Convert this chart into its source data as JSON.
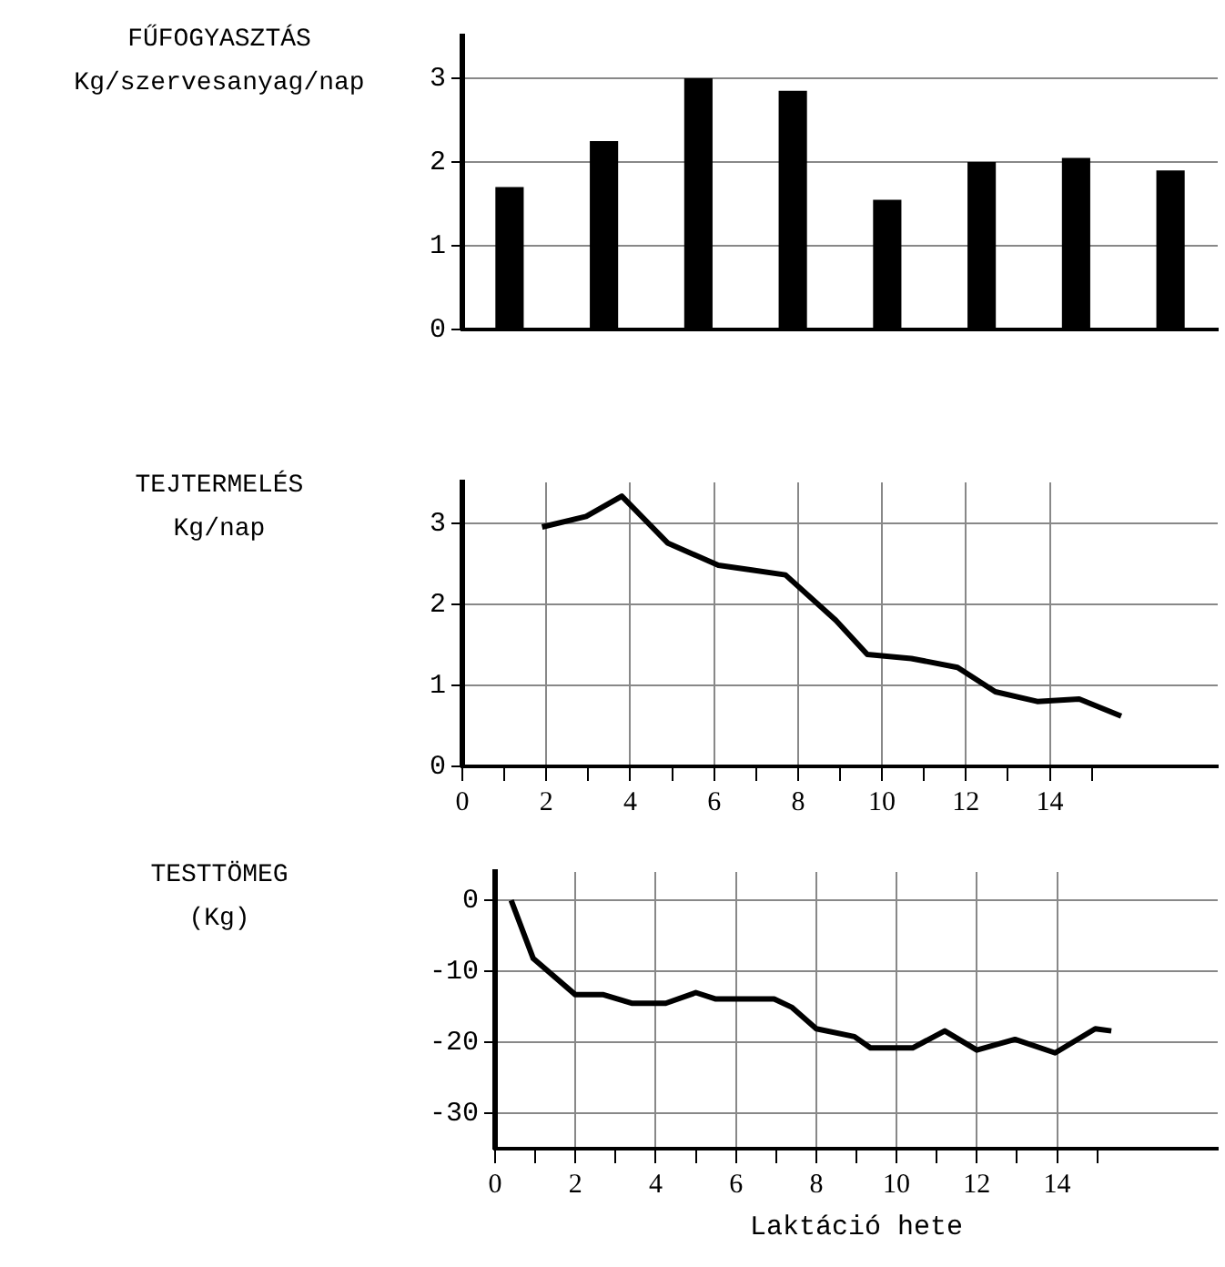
{
  "chart_data": [
    {
      "type": "bar",
      "ylabel": "FŰFOGYASZTÁS\nKg/szervesanyag/nap",
      "categories": [
        null,
        null,
        null,
        null,
        null,
        null,
        null,
        null
      ],
      "values": [
        1.7,
        2.25,
        3.0,
        2.85,
        1.55,
        2.0,
        2.05,
        1.9
      ],
      "color": "#000000",
      "ylim": [
        0,
        3.5
      ],
      "yticks": [
        0,
        1,
        2,
        3
      ],
      "grid": "y",
      "tick_labels": "y"
    },
    {
      "type": "line",
      "ylabel": "TEJTERMELÉS\nKg/nap",
      "series": [
        {
          "color": "#000000",
          "x": [
            1.9,
            2.95,
            3.8,
            4.9,
            6.1,
            6.9,
            7.7,
            8.9,
            9.65,
            10.7,
            11.8,
            12.7,
            13.7,
            14.7,
            15.7
          ],
          "values": [
            2.95,
            3.08,
            3.33,
            2.75,
            2.48,
            2.42,
            2.36,
            1.8,
            1.38,
            1.33,
            1.22,
            0.92,
            0.8,
            0.83,
            0.62
          ]
        }
      ],
      "xlim": [
        0,
        18
      ],
      "xticks": [
        0,
        {
          "value": 1,
          "label": null
        },
        2,
        {
          "value": 3,
          "label": null
        },
        4,
        {
          "value": 5,
          "label": null
        },
        6,
        {
          "value": 7,
          "label": null
        },
        8,
        {
          "value": 9,
          "label": null
        },
        10,
        {
          "value": 11,
          "label": null
        },
        12,
        {
          "value": 13,
          "label": null
        },
        14,
        {
          "value": 15,
          "label": null
        }
      ],
      "ylim": [
        0,
        3.5
      ],
      "yticks": [
        0,
        1,
        2,
        3
      ],
      "grid": true
    },
    {
      "type": "line",
      "ylabel": "TESTTÖMEG\n(Kg)",
      "xlabel": "Laktáció hete",
      "series": [
        {
          "color": "#000000",
          "x": [
            0.4,
            0.95,
            2.0,
            2.7,
            3.4,
            4.25,
            5.0,
            5.5,
            6.95,
            7.4,
            8.0,
            8.95,
            9.35,
            10.4,
            11.2,
            12.0,
            12.95,
            13.95,
            14.95,
            15.35
          ],
          "values": [
            0,
            -8.2,
            -13.3,
            -13.3,
            -14.5,
            -14.5,
            -13,
            -13.9,
            -13.9,
            -15.1,
            -18.1,
            -19.2,
            -20.8,
            -20.8,
            -18.4,
            -21.1,
            -19.6,
            -21.5,
            -18.1,
            -18.4
          ]
        }
      ],
      "xlim": [
        0,
        18
      ],
      "xticks": [
        0,
        {
          "value": 1,
          "label": null
        },
        2,
        {
          "value": 3,
          "label": null
        },
        4,
        {
          "value": 5,
          "label": null
        },
        6,
        {
          "value": 7,
          "label": null
        },
        8,
        {
          "value": 9,
          "label": null
        },
        10,
        {
          "value": 11,
          "label": null
        },
        12,
        {
          "value": 13,
          "label": null
        },
        14,
        {
          "value": 15,
          "label": null
        }
      ],
      "ylim": [
        -35,
        4
      ],
      "yticks": [
        -30,
        -20,
        -10,
        0
      ],
      "grid": true
    }
  ]
}
